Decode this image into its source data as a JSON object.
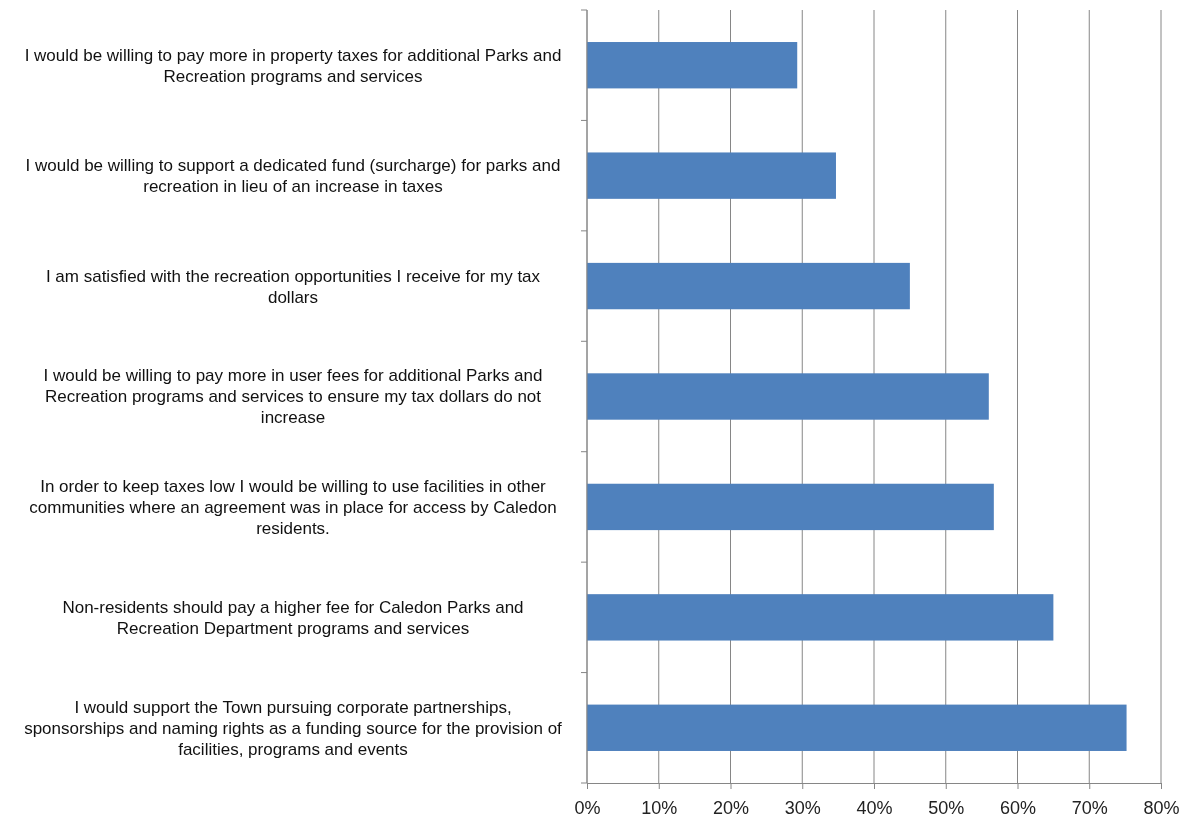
{
  "chart_data": {
    "type": "bar",
    "orientation": "horizontal",
    "categories": [
      "I would be willing to pay more in property taxes for additional Parks and Recreation programs and services",
      "I would be willing to support a dedicated fund (surcharge) for parks and recreation in lieu of an increase in taxes",
      "I am satisfied with the recreation opportunities I receive for my tax dollars",
      "I would be willing to pay more in user fees for additional Parks and Recreation programs and services to ensure my tax dollars do not increase",
      "In order to keep taxes low I would be willing to use facilities in other communities where an agreement was in place for access by Caledon residents.",
      "Non-residents should pay a higher fee for Caledon Parks and Recreation Department programs and services",
      "I would support the Town pursuing corporate partnerships, sponsorships and naming rights as a funding source for the provision of facilities, programs and events"
    ],
    "values": [
      29.3,
      34.7,
      45.0,
      56.0,
      56.7,
      65.0,
      75.2
    ],
    "color": "#4f81bd",
    "xlim": [
      0,
      80
    ],
    "xticks": [
      {
        "value": 0,
        "label": "0%"
      },
      {
        "value": 10,
        "label": "10%"
      },
      {
        "value": 20,
        "label": "20%"
      },
      {
        "value": 30,
        "label": "30%"
      },
      {
        "value": 40,
        "label": "40%"
      },
      {
        "value": 50,
        "label": "50%"
      },
      {
        "value": 60,
        "label": "60%"
      },
      {
        "value": 70,
        "label": "70%"
      },
      {
        "value": 80,
        "label": "80%"
      }
    ],
    "grid": "x"
  }
}
